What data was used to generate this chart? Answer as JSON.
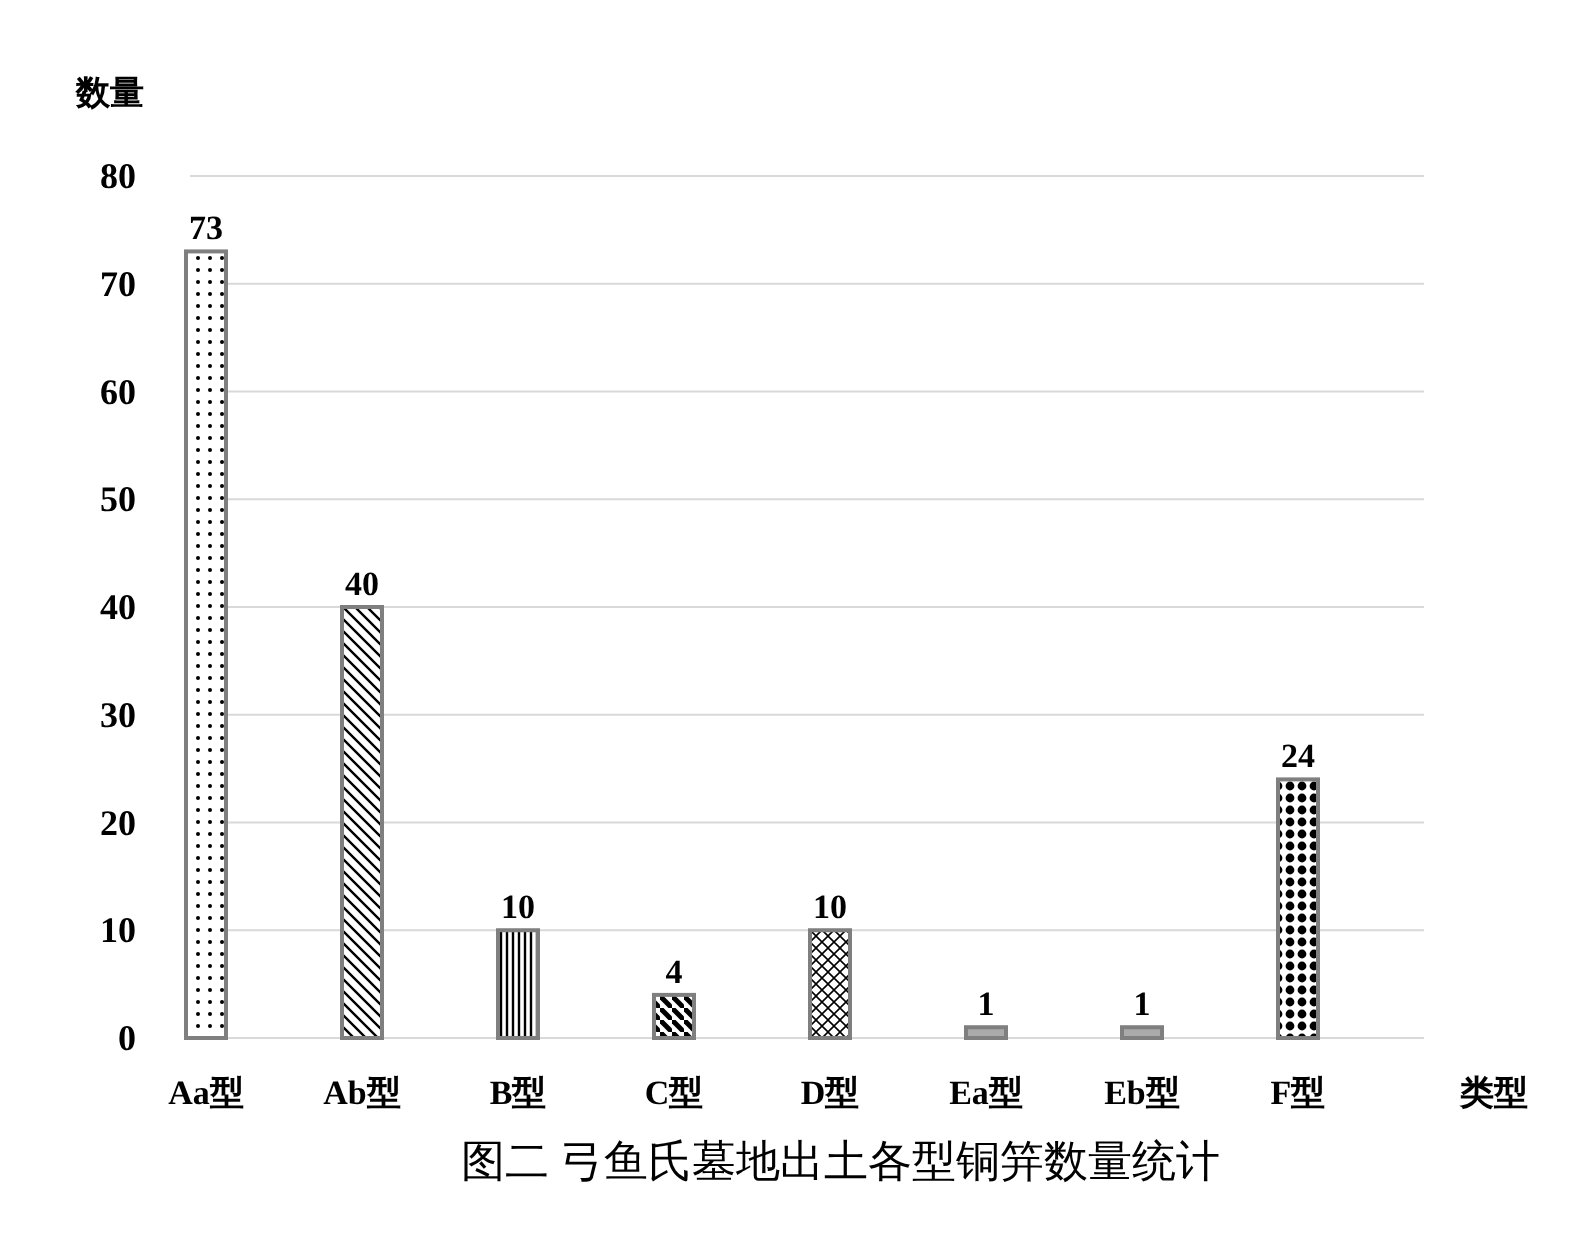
{
  "chart_data": {
    "type": "bar",
    "title": "图二 弓鱼氏墓地出土各型铜笄数量统计",
    "xlabel": "类型",
    "ylabel": "数量",
    "categories": [
      "Aa型",
      "Ab型",
      "B型",
      "C型",
      "D型",
      "Ea型",
      "Eb型",
      "F型"
    ],
    "values": [
      73,
      40,
      10,
      4,
      10,
      1,
      1,
      24
    ],
    "color": "#7f7f7f",
    "ylim": [
      0,
      80
    ],
    "yticks": [
      0,
      10,
      20,
      30,
      40,
      50,
      60,
      70,
      80
    ],
    "grid": "y",
    "data_labels": true
  }
}
